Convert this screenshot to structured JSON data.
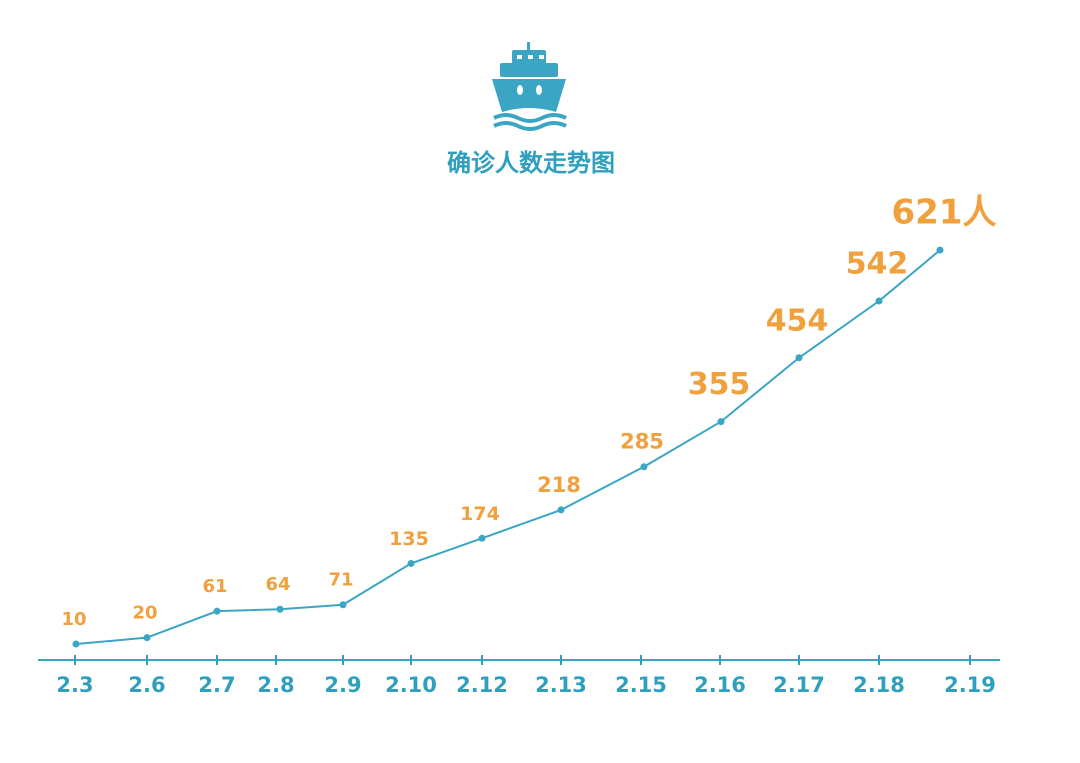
{
  "chart_data": {
    "type": "line",
    "title": "确诊人数走势图",
    "categories": [
      "2.3",
      "2.6",
      "2.7",
      "2.8",
      "2.9",
      "2.10",
      "2.12",
      "2.13",
      "2.15",
      "2.16",
      "2.17",
      "2.18",
      "2.19"
    ],
    "series": [
      {
        "color": "#3aa6c4",
        "values": [
          10,
          20,
          61,
          64,
          71,
          135,
          174,
          218,
          285,
          355,
          454,
          542,
          621
        ],
        "value_labels": [
          "10",
          "20",
          "61",
          "64",
          "71",
          "135",
          "174",
          "218",
          "285",
          "355",
          "454",
          "542",
          "621人"
        ]
      }
    ],
    "label_color": "#f0a03c",
    "axis_color": "#2f9fbf"
  }
}
